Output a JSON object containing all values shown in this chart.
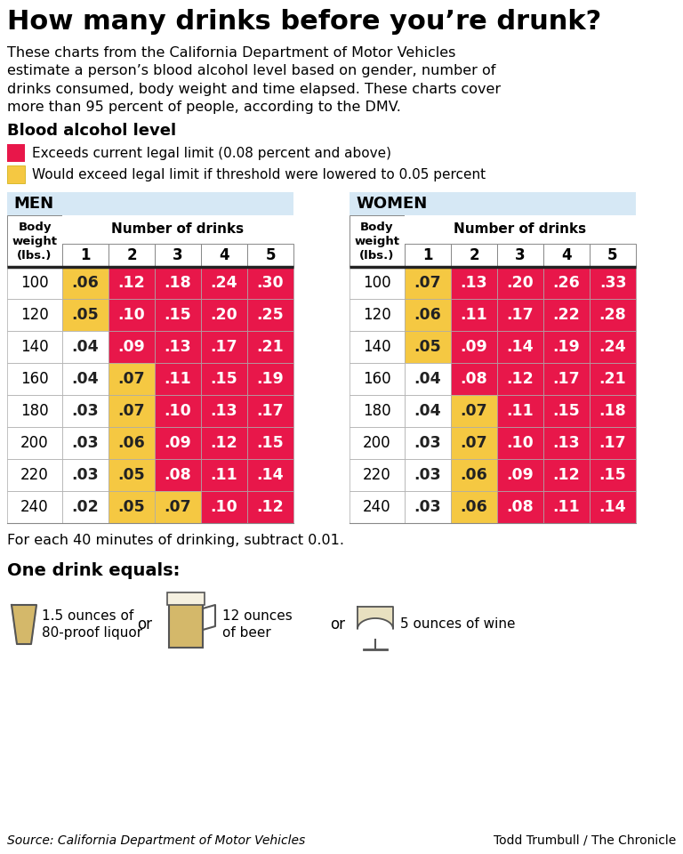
{
  "title": "How many drinks before you’re drunk?",
  "subtitle": "These charts from the California Department of Motor Vehicles\nestimate a person’s blood alcohol level based on gender, number of\ndrinks consumed, body weight and time elapsed. These charts cover\nmore than 95 percent of people, according to the DMV.",
  "legend_label1": "Exceeds current legal limit (0.08 percent and above)",
  "legend_label2": "Would exceed legal limit if threshold were lowered to 0.05 percent",
  "color_red": "#E8174A",
  "color_yellow": "#F5C842",
  "color_white": "#FFFFFF",
  "header_bg": "#D6E8F5",
  "body_weights": [
    100,
    120,
    140,
    160,
    180,
    200,
    220,
    240
  ],
  "drinks": [
    1,
    2,
    3,
    4,
    5
  ],
  "men_data": [
    [
      ".06",
      ".12",
      ".18",
      ".24",
      ".30"
    ],
    [
      ".05",
      ".10",
      ".15",
      ".20",
      ".25"
    ],
    [
      ".04",
      ".09",
      ".13",
      ".17",
      ".21"
    ],
    [
      ".04",
      ".07",
      ".11",
      ".15",
      ".19"
    ],
    [
      ".03",
      ".07",
      ".10",
      ".13",
      ".17"
    ],
    [
      ".03",
      ".06",
      ".09",
      ".12",
      ".15"
    ],
    [
      ".03",
      ".05",
      ".08",
      ".11",
      ".14"
    ],
    [
      ".02",
      ".05",
      ".07",
      ".10",
      ".12"
    ]
  ],
  "women_data": [
    [
      ".07",
      ".13",
      ".20",
      ".26",
      ".33"
    ],
    [
      ".06",
      ".11",
      ".17",
      ".22",
      ".28"
    ],
    [
      ".05",
      ".09",
      ".14",
      ".19",
      ".24"
    ],
    [
      ".04",
      ".08",
      ".12",
      ".17",
      ".21"
    ],
    [
      ".04",
      ".07",
      ".11",
      ".15",
      ".18"
    ],
    [
      ".03",
      ".07",
      ".10",
      ".13",
      ".17"
    ],
    [
      ".03",
      ".06",
      ".09",
      ".12",
      ".15"
    ],
    [
      ".03",
      ".06",
      ".08",
      ".11",
      ".14"
    ]
  ],
  "footnote": "For each 40 minutes of drinking, subtract 0.01.",
  "one_drink_label": "One drink equals:",
  "drink1_text": "1.5 ounces of\n80-proof liquor",
  "drink2_text": "12 ounces\nof beer",
  "drink3_text": "5 ounces of wine",
  "source_left": "Source: California Department of Motor Vehicles",
  "source_right": "Todd Trumbull / The Chronicle",
  "bg_color": "#FFFFFF"
}
